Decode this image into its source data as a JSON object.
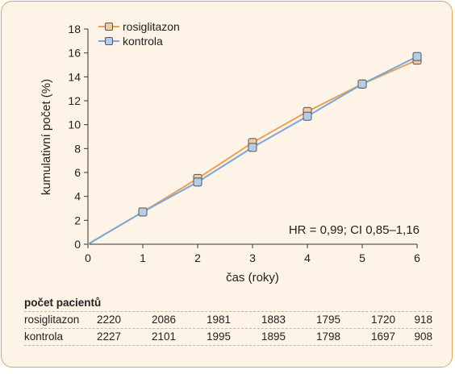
{
  "chart_data": {
    "type": "line",
    "xlabel": "čas (roky)",
    "ylabel": "kumulativní počet (%)",
    "xlim": [
      0,
      6
    ],
    "ylim": [
      0,
      18
    ],
    "x_ticks": [
      "0",
      "1",
      "2",
      "3",
      "4",
      "5",
      "6"
    ],
    "y_ticks": [
      "0",
      "2",
      "4",
      "6",
      "8",
      "10",
      "12",
      "14",
      "16",
      "18"
    ],
    "x": [
      0,
      1,
      2,
      3,
      4,
      5,
      6
    ],
    "series": [
      {
        "name": "rosiglitazon",
        "color": "#e8a05a",
        "marker_color": "#f3c9a0",
        "values": [
          0,
          2.7,
          5.5,
          8.5,
          11.1,
          13.4,
          15.4
        ]
      },
      {
        "name": "kontrola",
        "color": "#7aa6d8",
        "marker_color": "#b5cdea",
        "values": [
          0,
          2.7,
          5.2,
          8.1,
          10.7,
          13.4,
          15.7
        ]
      }
    ],
    "annotation": "HR = 0,99; CI 0,85–1,16",
    "legend_position": "top-left",
    "grid": false
  },
  "table": {
    "title": "počet pacientů",
    "rows": [
      {
        "label": "rosiglitazon",
        "values": [
          "2220",
          "2086",
          "1981",
          "1883",
          "1795",
          "1720",
          "918"
        ]
      },
      {
        "label": "kontrola",
        "values": [
          "2227",
          "2101",
          "1995",
          "1895",
          "1798",
          "1697",
          "908"
        ]
      }
    ]
  }
}
